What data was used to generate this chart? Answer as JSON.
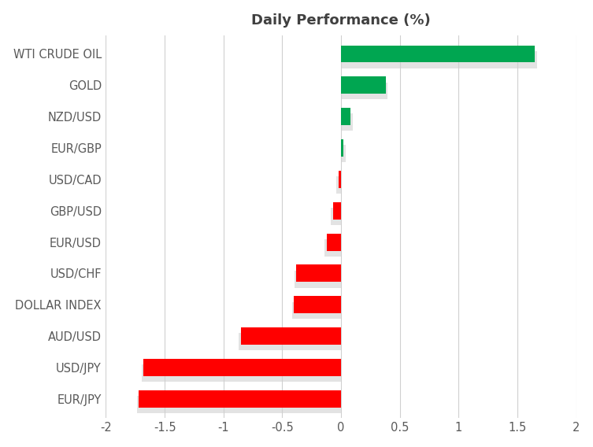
{
  "title": "Daily Performance (%)",
  "categories": [
    "EUR/JPY",
    "USD/JPY",
    "AUD/USD",
    "DOLLAR INDEX",
    "USD/CHF",
    "EUR/USD",
    "GBP/USD",
    "USD/CAD",
    "EUR/GBP",
    "NZD/USD",
    "GOLD",
    "WTI CRUDE OIL"
  ],
  "values": [
    -1.72,
    -1.68,
    -0.85,
    -0.4,
    -0.38,
    -0.12,
    -0.07,
    -0.02,
    0.02,
    0.08,
    0.38,
    1.65
  ],
  "positive_color": "#00a651",
  "negative_color": "#ff0000",
  "title_color": "#404040",
  "label_color": "#595959",
  "xlim": [
    -2,
    2
  ],
  "xticks": [
    -2,
    -1.5,
    -1,
    -0.5,
    0,
    0.5,
    1,
    1.5,
    2
  ],
  "background_color": "#ffffff",
  "grid_color": "#d0d0d0",
  "title_fontsize": 13,
  "label_fontsize": 10.5,
  "bar_height": 0.55
}
